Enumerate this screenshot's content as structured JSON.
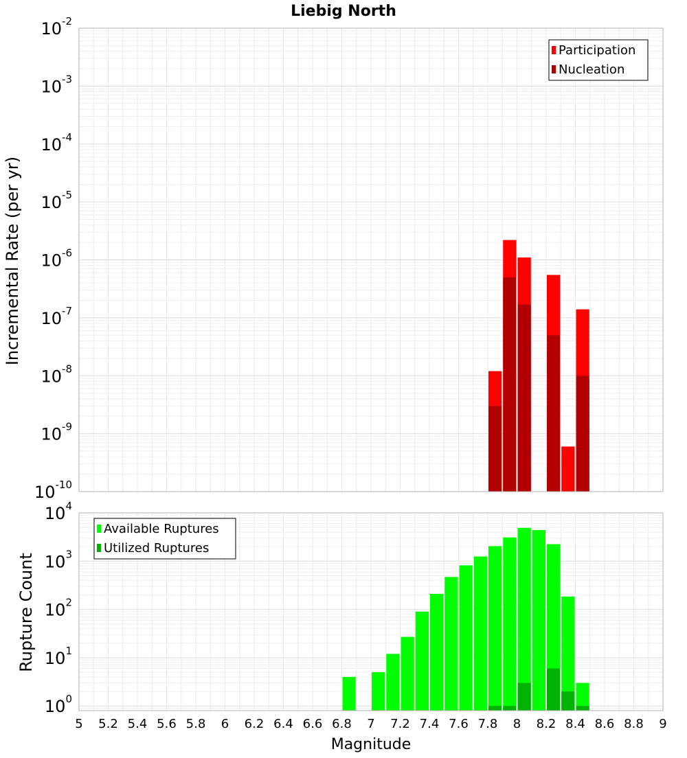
{
  "chart_data": [
    {
      "type": "bar",
      "title": "Liebig North",
      "ylabel": "Incremental Rate (per yr)",
      "xlabel": "",
      "xlim": [
        5,
        9
      ],
      "ylim": [
        1e-10,
        0.01
      ],
      "y_scale": "log",
      "bin_width": 0.1,
      "grid": true,
      "legend_position": "top-right",
      "series": [
        {
          "name": "Participation",
          "color": "#ff0000",
          "x": [
            7.85,
            7.95,
            8.05,
            8.25,
            8.35,
            8.45
          ],
          "values": [
            1.2e-08,
            2.2e-06,
            1.1e-06,
            5.5e-07,
            6e-10,
            1.4e-07
          ]
        },
        {
          "name": "Nucleation",
          "color": "#b20000",
          "x": [
            7.85,
            7.95,
            8.05,
            8.25,
            8.45
          ],
          "values": [
            3e-09,
            5e-07,
            1.7e-07,
            5e-08,
            1e-08
          ]
        }
      ]
    },
    {
      "type": "bar",
      "title": "",
      "ylabel": "Rupture Count",
      "xlabel": "Magnitude",
      "xlim": [
        5,
        9
      ],
      "ylim": [
        0.8,
        10000
      ],
      "y_scale": "log",
      "bin_width": 0.1,
      "grid": true,
      "legend_position": "top-left",
      "x_ticks": [
        "5",
        "5.2",
        "5.4",
        "5.6",
        "5.8",
        "6",
        "6.2",
        "6.4",
        "6.6",
        "6.8",
        "7",
        "7.2",
        "7.4",
        "7.6",
        "7.8",
        "8",
        "8.2",
        "8.4",
        "8.6",
        "8.8",
        "9"
      ],
      "series": [
        {
          "name": "Available Ruptures",
          "color": "#00ff00",
          "x": [
            6.85,
            7.05,
            7.15,
            7.25,
            7.35,
            7.45,
            7.55,
            7.65,
            7.75,
            7.85,
            7.95,
            8.05,
            8.15,
            8.25,
            8.35,
            8.45
          ],
          "values": [
            4,
            5,
            12,
            27,
            90,
            210,
            470,
            820,
            1250,
            2050,
            3100,
            4900,
            4400,
            2250,
            185,
            3
          ]
        },
        {
          "name": "Utilized Ruptures",
          "color": "#00b200",
          "x": [
            7.85,
            7.95,
            8.05,
            8.25,
            8.35,
            8.45
          ],
          "values": [
            1,
            1,
            3,
            6,
            2,
            1
          ]
        }
      ]
    }
  ],
  "y_tick_base": "10",
  "top_y_exponents": [
    "-2",
    "-3",
    "-4",
    "-5",
    "-6",
    "-7",
    "-8",
    "-9",
    "-10"
  ],
  "bottom_y_exponents": [
    "4",
    "3",
    "2",
    "1",
    "0"
  ]
}
